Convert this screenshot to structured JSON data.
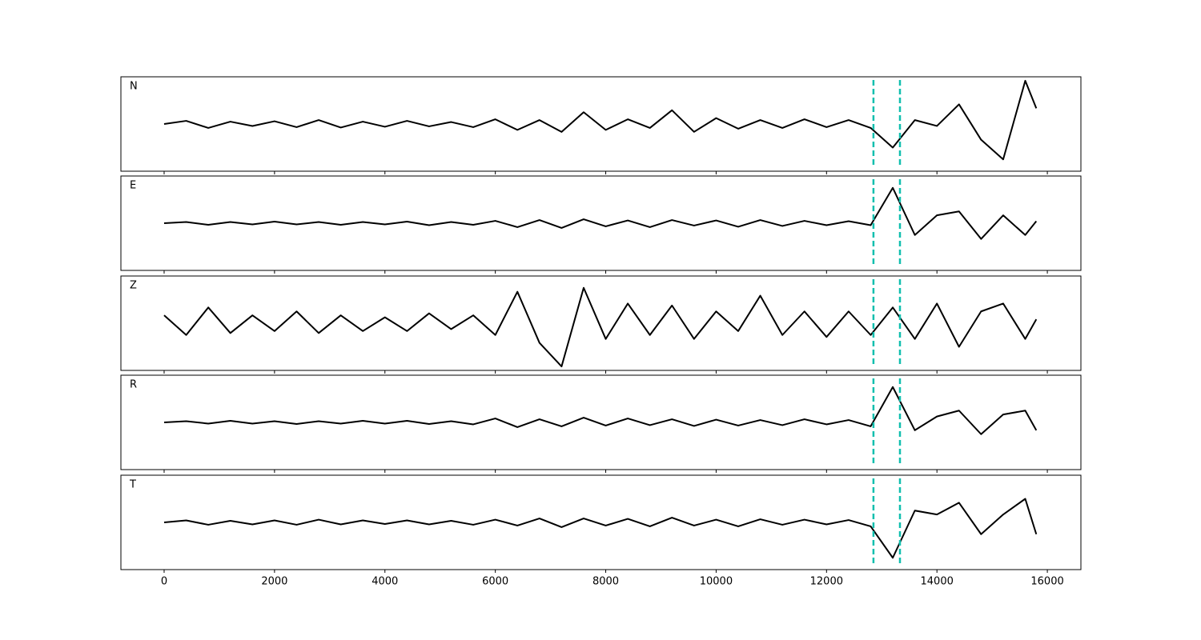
{
  "chart_data": [
    {
      "type": "line",
      "label": "N",
      "color": "#000000",
      "vline_color": "#11bfae",
      "vlines": [
        12850,
        13330
      ],
      "xlim": [
        -783,
        16608
      ],
      "xticks": [
        0,
        2000,
        4000,
        6000,
        8000,
        10000,
        12000,
        14000,
        16000
      ],
      "ylim": [
        -1.2,
        1.2
      ],
      "show_xticklabels": false,
      "x": [
        0,
        400,
        800,
        1200,
        1600,
        2000,
        2400,
        2800,
        3200,
        3600,
        4000,
        4400,
        4800,
        5200,
        5600,
        6000,
        6400,
        6800,
        7200,
        7600,
        8000,
        8400,
        8800,
        9200,
        9600,
        10000,
        10400,
        10800,
        11200,
        11600,
        12000,
        12400,
        12800,
        13200,
        13600,
        14000,
        14400,
        14800,
        15200,
        15600,
        15800
      ],
      "values": [
        0,
        0.08,
        -0.1,
        0.06,
        -0.05,
        0.07,
        -0.08,
        0.1,
        -0.09,
        0.06,
        -0.07,
        0.08,
        -0.06,
        0.05,
        -0.08,
        0.12,
        -0.15,
        0.1,
        -0.2,
        0.3,
        -0.15,
        0.12,
        -0.1,
        0.35,
        -0.2,
        0.15,
        -0.12,
        0.1,
        -0.1,
        0.12,
        -0.08,
        0.1,
        -0.1,
        -0.6,
        0.1,
        -0.05,
        0.5,
        -0.4,
        -0.9,
        1.1,
        0.4
      ]
    },
    {
      "type": "line",
      "label": "E",
      "color": "#000000",
      "vline_color": "#11bfae",
      "vlines": [
        12850,
        13330
      ],
      "xlim": [
        -783,
        16608
      ],
      "xticks": [
        0,
        2000,
        4000,
        6000,
        8000,
        10000,
        12000,
        14000,
        16000
      ],
      "ylim": [
        -1.2,
        1.2
      ],
      "show_xticklabels": false,
      "x": [
        0,
        400,
        800,
        1200,
        1600,
        2000,
        2400,
        2800,
        3200,
        3600,
        4000,
        4400,
        4800,
        5200,
        5600,
        6000,
        6400,
        6800,
        7200,
        7600,
        8000,
        8400,
        8800,
        9200,
        9600,
        10000,
        10400,
        10800,
        11200,
        11600,
        12000,
        12400,
        12800,
        13200,
        13600,
        14000,
        14400,
        14800,
        15200,
        15600,
        15800
      ],
      "values": [
        0,
        0.03,
        -0.04,
        0.03,
        -0.03,
        0.04,
        -0.03,
        0.03,
        -0.04,
        0.03,
        -0.03,
        0.04,
        -0.05,
        0.03,
        -0.04,
        0.06,
        -0.1,
        0.08,
        -0.12,
        0.1,
        -0.08,
        0.07,
        -0.1,
        0.08,
        -0.06,
        0.07,
        -0.09,
        0.08,
        -0.07,
        0.06,
        -0.05,
        0.05,
        -0.05,
        0.9,
        -0.3,
        0.2,
        0.3,
        -0.4,
        0.2,
        -0.3,
        0.05
      ]
    },
    {
      "type": "line",
      "label": "Z",
      "color": "#000000",
      "vline_color": "#11bfae",
      "vlines": [
        12850,
        13330
      ],
      "xlim": [
        -783,
        16608
      ],
      "xticks": [
        0,
        2000,
        4000,
        6000,
        8000,
        10000,
        12000,
        14000,
        16000
      ],
      "ylim": [
        -1.2,
        1.2
      ],
      "show_xticklabels": false,
      "x": [
        0,
        400,
        800,
        1200,
        1600,
        2000,
        2400,
        2800,
        3200,
        3600,
        4000,
        4400,
        4800,
        5200,
        5600,
        6000,
        6400,
        6800,
        7200,
        7600,
        8000,
        8400,
        8800,
        9200,
        9600,
        10000,
        10400,
        10800,
        11200,
        11600,
        12000,
        12400,
        12800,
        13200,
        13600,
        14000,
        14400,
        14800,
        15200,
        15600,
        15800
      ],
      "values": [
        0.2,
        -0.3,
        0.4,
        -0.25,
        0.2,
        -0.2,
        0.3,
        -0.25,
        0.2,
        -0.2,
        0.15,
        -0.2,
        0.25,
        -0.15,
        0.2,
        -0.3,
        0.8,
        -0.5,
        -1.1,
        0.9,
        -0.4,
        0.5,
        -0.3,
        0.45,
        -0.4,
        0.3,
        -0.2,
        0.7,
        -0.3,
        0.3,
        -0.35,
        0.3,
        -0.3,
        0.4,
        -0.4,
        0.5,
        -0.6,
        0.3,
        0.5,
        -0.4,
        0.1
      ]
    },
    {
      "type": "line",
      "label": "R",
      "color": "#000000",
      "vline_color": "#11bfae",
      "vlines": [
        12850,
        13330
      ],
      "xlim": [
        -783,
        16608
      ],
      "xticks": [
        0,
        2000,
        4000,
        6000,
        8000,
        10000,
        12000,
        14000,
        16000
      ],
      "ylim": [
        -1.2,
        1.2
      ],
      "show_xticklabels": false,
      "x": [
        0,
        400,
        800,
        1200,
        1600,
        2000,
        2400,
        2800,
        3200,
        3600,
        4000,
        4400,
        4800,
        5200,
        5600,
        6000,
        6400,
        6800,
        7200,
        7600,
        8000,
        8400,
        8800,
        9200,
        9600,
        10000,
        10400,
        10800,
        11200,
        11600,
        12000,
        12400,
        12800,
        13200,
        13600,
        14000,
        14400,
        14800,
        15200,
        15600,
        15800
      ],
      "values": [
        0,
        0.03,
        -0.03,
        0.04,
        -0.03,
        0.03,
        -0.04,
        0.03,
        -0.03,
        0.04,
        -0.03,
        0.04,
        -0.04,
        0.03,
        -0.05,
        0.1,
        -0.12,
        0.08,
        -0.1,
        0.12,
        -0.08,
        0.1,
        -0.07,
        0.08,
        -0.09,
        0.07,
        -0.08,
        0.06,
        -0.07,
        0.08,
        -0.05,
        0.06,
        -0.1,
        0.9,
        -0.2,
        0.15,
        0.3,
        -0.3,
        0.2,
        0.3,
        -0.2
      ]
    },
    {
      "type": "line",
      "label": "T",
      "color": "#000000",
      "vline_color": "#11bfae",
      "vlines": [
        12850,
        13330
      ],
      "xlim": [
        -783,
        16608
      ],
      "xticks": [
        0,
        2000,
        4000,
        6000,
        8000,
        10000,
        12000,
        14000,
        16000
      ],
      "ylim": [
        -1.2,
        1.2
      ],
      "show_xticklabels": true,
      "x": [
        0,
        400,
        800,
        1200,
        1600,
        2000,
        2400,
        2800,
        3200,
        3600,
        4000,
        4400,
        4800,
        5200,
        5600,
        6000,
        6400,
        6800,
        7200,
        7600,
        8000,
        8400,
        8800,
        9200,
        9600,
        10000,
        10400,
        10800,
        11200,
        11600,
        12000,
        12400,
        12800,
        13200,
        13600,
        14000,
        14400,
        14800,
        15200,
        15600,
        15800
      ],
      "values": [
        0,
        0.05,
        -0.06,
        0.04,
        -0.05,
        0.05,
        -0.06,
        0.07,
        -0.05,
        0.05,
        -0.04,
        0.05,
        -0.05,
        0.04,
        -0.06,
        0.07,
        -0.08,
        0.1,
        -0.12,
        0.1,
        -0.08,
        0.09,
        -0.1,
        0.12,
        -0.08,
        0.07,
        -0.1,
        0.08,
        -0.06,
        0.07,
        -0.05,
        0.06,
        -0.1,
        -0.9,
        0.3,
        0.2,
        0.5,
        -0.3,
        0.2,
        0.6,
        -0.3
      ]
    }
  ]
}
